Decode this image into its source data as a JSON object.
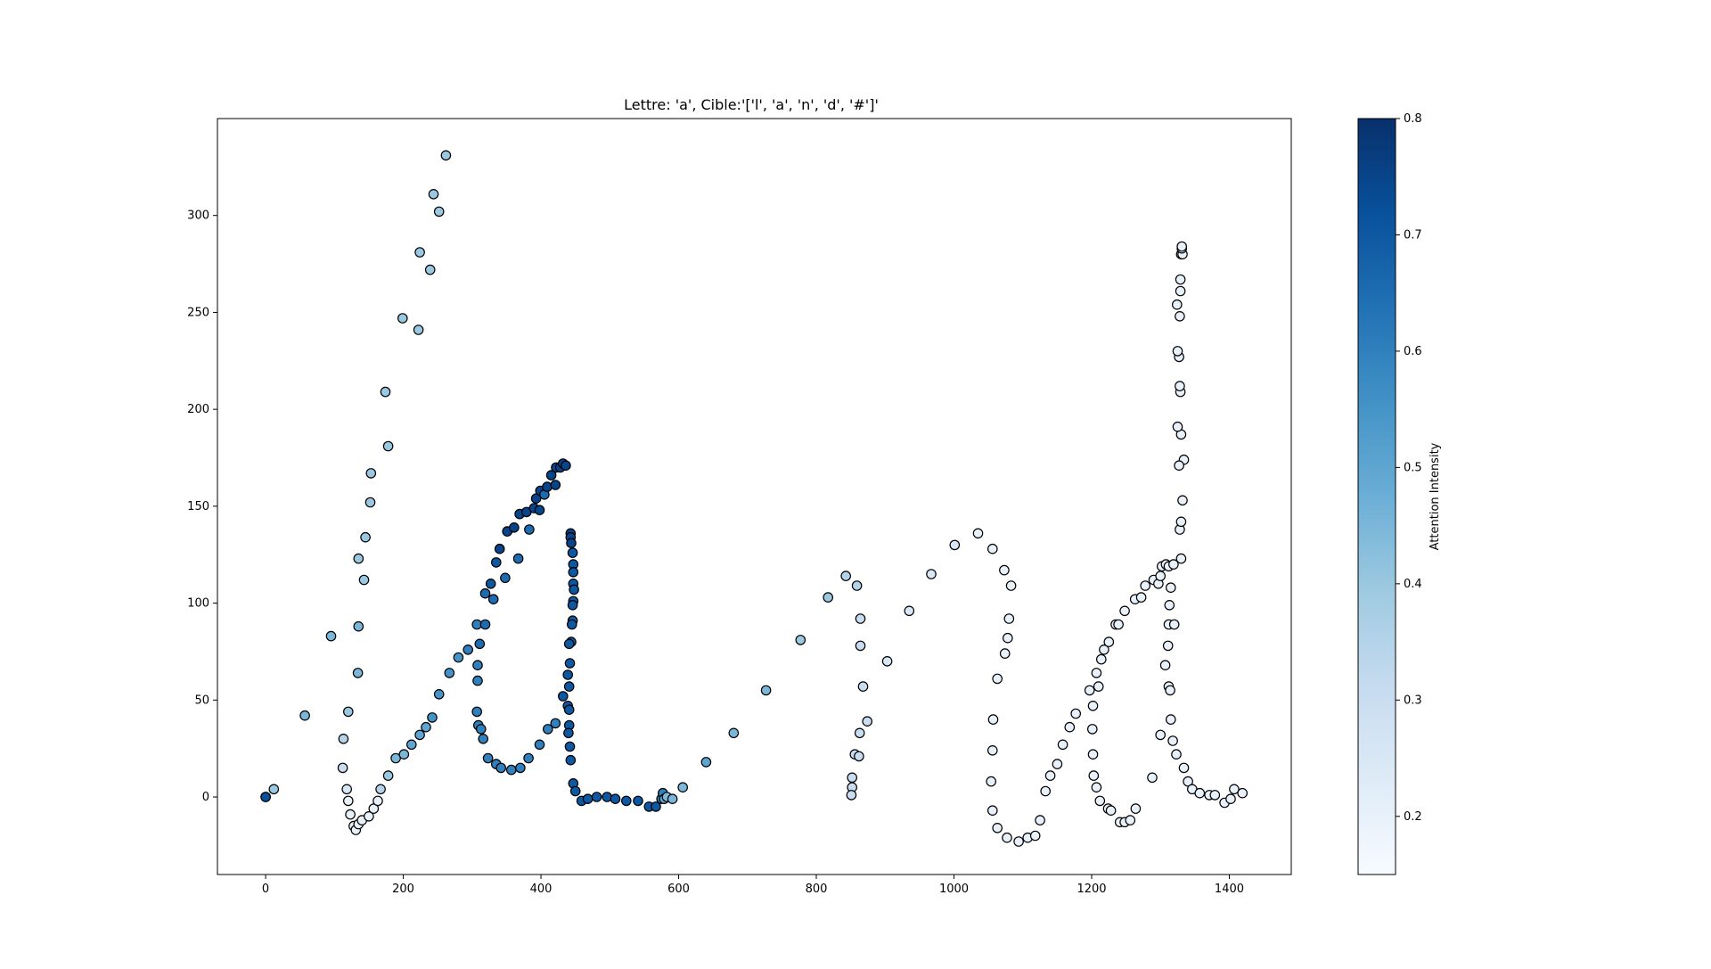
{
  "chart_data": {
    "type": "scatter",
    "title": "Lettre: 'a', Cible:'['l', 'a', 'n', 'd', '#']'",
    "xlabel": "",
    "ylabel": "",
    "xlim": [
      -70,
      1490
    ],
    "ylim": [
      -40,
      350
    ],
    "xticks": [
      0,
      200,
      400,
      600,
      800,
      1000,
      1200,
      1400
    ],
    "yticks": [
      0,
      50,
      100,
      150,
      200,
      250,
      300
    ],
    "grid": false,
    "colormap": "Blues",
    "colorbar": {
      "label": "Attention Intensity",
      "range": [
        0.15,
        0.8
      ],
      "ticks": [
        0.2,
        0.3,
        0.4,
        0.5,
        0.6,
        0.7,
        0.8
      ]
    },
    "points": [
      [
        0,
        0,
        0.72
      ],
      [
        0,
        0,
        0.72
      ],
      [
        12,
        4,
        0.4
      ],
      [
        57,
        42,
        0.45
      ],
      [
        95,
        83,
        0.45
      ],
      [
        120,
        44,
        0.4
      ],
      [
        113,
        30,
        0.35
      ],
      [
        112,
        15,
        0.3
      ],
      [
        118,
        4,
        0.25
      ],
      [
        120,
        -2,
        0.2
      ],
      [
        123,
        -9,
        0.2
      ],
      [
        128,
        -15,
        0.2
      ],
      [
        131,
        -17,
        0.2
      ],
      [
        135,
        -14,
        0.2
      ],
      [
        140,
        -12,
        0.2
      ],
      [
        150,
        -10,
        0.2
      ],
      [
        157,
        -6,
        0.2
      ],
      [
        163,
        -2,
        0.2
      ],
      [
        167,
        4,
        0.35
      ],
      [
        178,
        11,
        0.4
      ],
      [
        189,
        20,
        0.45
      ],
      [
        201,
        22,
        0.45
      ],
      [
        212,
        27,
        0.5
      ],
      [
        224,
        32,
        0.5
      ],
      [
        233,
        36,
        0.5
      ],
      [
        242,
        41,
        0.55
      ],
      [
        252,
        53,
        0.55
      ],
      [
        267,
        64,
        0.55
      ],
      [
        280,
        72,
        0.55
      ],
      [
        294,
        76,
        0.6
      ],
      [
        307,
        89,
        0.6
      ],
      [
        308,
        68,
        0.6
      ],
      [
        308,
        60,
        0.6
      ],
      [
        307,
        44,
        0.6
      ],
      [
        309,
        37,
        0.6
      ],
      [
        313,
        35,
        0.6
      ],
      [
        316,
        30,
        0.6
      ],
      [
        323,
        20,
        0.6
      ],
      [
        335,
        17,
        0.6
      ],
      [
        342,
        15,
        0.6
      ],
      [
        357,
        14,
        0.6
      ],
      [
        370,
        15,
        0.6
      ],
      [
        382,
        20,
        0.6
      ],
      [
        398,
        27,
        0.6
      ],
      [
        410,
        35,
        0.6
      ],
      [
        421,
        38,
        0.6
      ],
      [
        311,
        79,
        0.65
      ],
      [
        319,
        89,
        0.65
      ],
      [
        319,
        105,
        0.65
      ],
      [
        327,
        110,
        0.7
      ],
      [
        331,
        102,
        0.65
      ],
      [
        335,
        121,
        0.7
      ],
      [
        340,
        128,
        0.75
      ],
      [
        348,
        113,
        0.65
      ],
      [
        351,
        137,
        0.75
      ],
      [
        361,
        139,
        0.75
      ],
      [
        367,
        123,
        0.65
      ],
      [
        369,
        146,
        0.75
      ],
      [
        379,
        147,
        0.75
      ],
      [
        383,
        138,
        0.65
      ],
      [
        390,
        149,
        0.75
      ],
      [
        393,
        154,
        0.75
      ],
      [
        398,
        148,
        0.75
      ],
      [
        399,
        158,
        0.75
      ],
      [
        405,
        156,
        0.65
      ],
      [
        409,
        160,
        0.75
      ],
      [
        415,
        166,
        0.75
      ],
      [
        421,
        161,
        0.75
      ],
      [
        422,
        170,
        0.75
      ],
      [
        428,
        170,
        0.75
      ],
      [
        432,
        172,
        0.75
      ],
      [
        436,
        171,
        0.75
      ],
      [
        443,
        136,
        0.75
      ],
      [
        443,
        134,
        0.75
      ],
      [
        444,
        131,
        0.75
      ],
      [
        446,
        126,
        0.7
      ],
      [
        447,
        120,
        0.7
      ],
      [
        447,
        116,
        0.7
      ],
      [
        447,
        110,
        0.7
      ],
      [
        448,
        107,
        0.7
      ],
      [
        447,
        101,
        0.7
      ],
      [
        446,
        99,
        0.7
      ],
      [
        446,
        91,
        0.7
      ],
      [
        445,
        89,
        0.7
      ],
      [
        444,
        80,
        0.7
      ],
      [
        441,
        79,
        0.7
      ],
      [
        442,
        69,
        0.7
      ],
      [
        439,
        63,
        0.7
      ],
      [
        441,
        57,
        0.7
      ],
      [
        432,
        52,
        0.7
      ],
      [
        439,
        47,
        0.7
      ],
      [
        441,
        45,
        0.7
      ],
      [
        441,
        37,
        0.7
      ],
      [
        440,
        33,
        0.7
      ],
      [
        442,
        26,
        0.7
      ],
      [
        443,
        19,
        0.7
      ],
      [
        447,
        7,
        0.7
      ],
      [
        450,
        3,
        0.7
      ],
      [
        459,
        -2,
        0.7
      ],
      [
        468,
        -1,
        0.7
      ],
      [
        481,
        0,
        0.7
      ],
      [
        496,
        0,
        0.7
      ],
      [
        508,
        -1,
        0.7
      ],
      [
        524,
        -2,
        0.7
      ],
      [
        541,
        -2,
        0.7
      ],
      [
        557,
        -5,
        0.7
      ],
      [
        567,
        -5,
        0.7
      ],
      [
        575,
        -1,
        0.6
      ],
      [
        577,
        2,
        0.6
      ],
      [
        579,
        -1,
        0.5
      ],
      [
        583,
        0,
        0.45
      ],
      [
        591,
        -1,
        0.45
      ],
      [
        606,
        5,
        0.45
      ],
      [
        640,
        18,
        0.5
      ],
      [
        680,
        33,
        0.45
      ],
      [
        727,
        55,
        0.45
      ],
      [
        777,
        81,
        0.4
      ],
      [
        817,
        103,
        0.4
      ],
      [
        843,
        114,
        0.35
      ],
      [
        859,
        109,
        0.35
      ],
      [
        864,
        92,
        0.3
      ],
      [
        864,
        78,
        0.3
      ],
      [
        868,
        57,
        0.3
      ],
      [
        874,
        39,
        0.3
      ],
      [
        863,
        33,
        0.3
      ],
      [
        856,
        22,
        0.3
      ],
      [
        862,
        21,
        0.3
      ],
      [
        852,
        10,
        0.3
      ],
      [
        852,
        5,
        0.3
      ],
      [
        851,
        1,
        0.3
      ],
      [
        903,
        70,
        0.25
      ],
      [
        935,
        96,
        0.25
      ],
      [
        967,
        115,
        0.25
      ],
      [
        1001,
        130,
        0.25
      ],
      [
        1035,
        136,
        0.2
      ],
      [
        1056,
        128,
        0.2
      ],
      [
        1073,
        117,
        0.2
      ],
      [
        1083,
        109,
        0.2
      ],
      [
        1080,
        92,
        0.2
      ],
      [
        1078,
        82,
        0.2
      ],
      [
        1074,
        74,
        0.2
      ],
      [
        1063,
        61,
        0.2
      ],
      [
        1057,
        40,
        0.2
      ],
      [
        1056,
        24,
        0.2
      ],
      [
        1054,
        8,
        0.2
      ],
      [
        1056,
        -7,
        0.2
      ],
      [
        1063,
        -16,
        0.2
      ],
      [
        1077,
        -21,
        0.2
      ],
      [
        1094,
        -23,
        0.2
      ],
      [
        1107,
        -21,
        0.2
      ],
      [
        1118,
        -20,
        0.2
      ],
      [
        1125,
        -12,
        0.2
      ],
      [
        1133,
        3,
        0.2
      ],
      [
        1140,
        11,
        0.2
      ],
      [
        1150,
        17,
        0.2
      ],
      [
        1158,
        27,
        0.2
      ],
      [
        1168,
        36,
        0.2
      ],
      [
        1177,
        43,
        0.2
      ],
      [
        1197,
        55,
        0.2
      ],
      [
        1202,
        47,
        0.2
      ],
      [
        1201,
        35,
        0.2
      ],
      [
        1202,
        22,
        0.2
      ],
      [
        1203,
        11,
        0.2
      ],
      [
        1207,
        5,
        0.2
      ],
      [
        1212,
        -2,
        0.2
      ],
      [
        1224,
        -6,
        0.2
      ],
      [
        1228,
        -7,
        0.2
      ],
      [
        1241,
        -13,
        0.2
      ],
      [
        1248,
        -13,
        0.2
      ],
      [
        1256,
        -12,
        0.2
      ],
      [
        1264,
        -6,
        0.2
      ],
      [
        1210,
        57,
        0.2
      ],
      [
        1207,
        64,
        0.2
      ],
      [
        1214,
        71,
        0.2
      ],
      [
        1218,
        76,
        0.2
      ],
      [
        1225,
        80,
        0.2
      ],
      [
        1235,
        89,
        0.2
      ],
      [
        1239,
        89,
        0.2
      ],
      [
        1248,
        96,
        0.2
      ],
      [
        1263,
        102,
        0.2
      ],
      [
        1272,
        103,
        0.2
      ],
      [
        1278,
        109,
        0.2
      ],
      [
        1290,
        112,
        0.2
      ],
      [
        1297,
        110,
        0.2
      ],
      [
        1300,
        114,
        0.2
      ],
      [
        1302,
        119,
        0.2
      ],
      [
        1308,
        120,
        0.2
      ],
      [
        1312,
        119,
        0.2
      ],
      [
        1315,
        108,
        0.2
      ],
      [
        1313,
        99,
        0.2
      ],
      [
        1312,
        89,
        0.2
      ],
      [
        1311,
        78,
        0.2
      ],
      [
        1307,
        68,
        0.2
      ],
      [
        1312,
        57,
        0.2
      ],
      [
        1314,
        55,
        0.2
      ],
      [
        1315,
        40,
        0.2
      ],
      [
        1300,
        32,
        0.2
      ],
      [
        1288,
        10,
        0.2
      ],
      [
        1318,
        29,
        0.2
      ],
      [
        1323,
        22,
        0.2
      ],
      [
        1320,
        89,
        0.2
      ],
      [
        1319,
        120,
        0.2
      ],
      [
        1330,
        123,
        0.2
      ],
      [
        1328,
        138,
        0.2
      ],
      [
        1330,
        142,
        0.2
      ],
      [
        1332,
        153,
        0.2
      ],
      [
        1334,
        174,
        0.2
      ],
      [
        1327,
        171,
        0.2
      ],
      [
        1330,
        187,
        0.2
      ],
      [
        1325,
        191,
        0.2
      ],
      [
        1329,
        209,
        0.2
      ],
      [
        1328,
        212,
        0.2
      ],
      [
        1327,
        227,
        0.2
      ],
      [
        1325,
        230,
        0.2
      ],
      [
        1328,
        248,
        0.2
      ],
      [
        1324,
        254,
        0.2
      ],
      [
        1329,
        261,
        0.2
      ],
      [
        1329,
        267,
        0.2
      ],
      [
        1330,
        280,
        0.2
      ],
      [
        1332,
        280,
        0.2
      ],
      [
        1331,
        283,
        0.2
      ],
      [
        1331,
        284,
        0.2
      ],
      [
        1334,
        15,
        0.2
      ],
      [
        1340,
        8,
        0.2
      ],
      [
        1346,
        4,
        0.2
      ],
      [
        1357,
        2,
        0.2
      ],
      [
        1371,
        1,
        0.2
      ],
      [
        1379,
        1,
        0.2
      ],
      [
        1393,
        -3,
        0.2
      ],
      [
        1402,
        -1,
        0.2
      ],
      [
        1407,
        4,
        0.2
      ],
      [
        1419,
        2,
        0.2
      ],
      [
        134,
        64,
        0.45
      ],
      [
        135,
        88,
        0.45
      ],
      [
        135,
        123,
        0.4
      ],
      [
        143,
        112,
        0.4
      ],
      [
        145,
        134,
        0.4
      ],
      [
        152,
        152,
        0.4
      ],
      [
        153,
        167,
        0.4
      ],
      [
        174,
        209,
        0.4
      ],
      [
        178,
        181,
        0.4
      ],
      [
        199,
        247,
        0.4
      ],
      [
        222,
        241,
        0.4
      ],
      [
        224,
        281,
        0.4
      ],
      [
        239,
        272,
        0.4
      ],
      [
        244,
        311,
        0.4
      ],
      [
        252,
        302,
        0.4
      ],
      [
        262,
        331,
        0.4
      ]
    ]
  }
}
